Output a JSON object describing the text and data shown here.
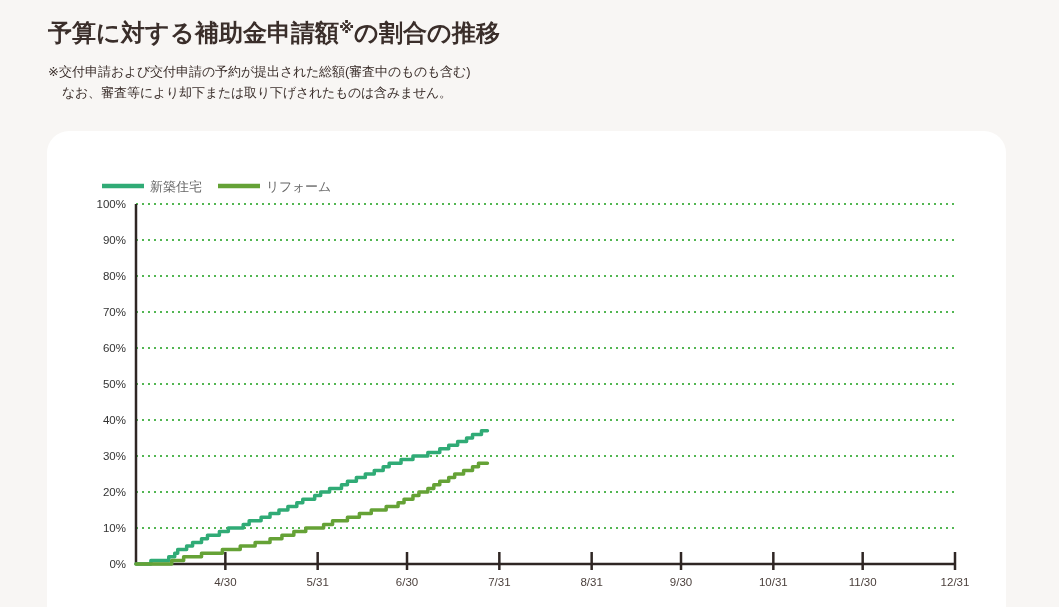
{
  "chart_data": {
    "type": "step",
    "title": "予算に対する補助金申請額$^{※}$の割合の推移",
    "subtitle": "※交付申請および交付申請の予約が提出された総額(審査中のものも含む)",
    "annotations": [
      "なお、審査等により却下または取り下げされたものは含みません。"
    ],
    "xlim": [
      "--03-31",
      "--12-31"
    ],
    "xticks": [
      {
        "value": "--04-30",
        "label": "4/30"
      },
      {
        "value": "--05-31",
        "label": "5/31"
      },
      {
        "value": "--06-30",
        "label": "6/30"
      },
      {
        "value": "--07-31",
        "label": "7/31"
      },
      {
        "value": "--08-31",
        "label": "8/31"
      },
      {
        "value": "--09-30",
        "label": "9/30"
      },
      {
        "value": "--10-31",
        "label": "10/31"
      },
      {
        "value": "--11-30",
        "label": "11/30"
      },
      {
        "value": "--12-31",
        "label": "12/31"
      }
    ],
    "ylim": [
      0,
      100
    ],
    "yticks": [
      {
        "value": 0,
        "label": "0%"
      },
      {
        "value": 10,
        "label": "10%"
      },
      {
        "value": 20,
        "label": "20%"
      },
      {
        "value": 30,
        "label": "30%"
      },
      {
        "value": 40,
        "label": "40%"
      },
      {
        "value": 50,
        "label": "50%"
      },
      {
        "value": 60,
        "label": "60%"
      },
      {
        "value": 70,
        "label": "70%"
      },
      {
        "value": 80,
        "label": "80%"
      },
      {
        "value": 90,
        "label": "90%"
      },
      {
        "value": 100,
        "label": "100%"
      }
    ],
    "grid": "y",
    "legend": "top left",
    "series": [
      {
        "name": "新築住宅",
        "color": "#30ab76",
        "x": [
          "--03-31",
          "--04-05",
          "--04-11",
          "--04-13",
          "--04-14",
          "--04-17",
          "--04-19",
          "--04-22",
          "--04-24",
          "--04-28",
          "--05-01",
          "--05-06",
          "--05-08",
          "--05-12",
          "--05-15",
          "--05-18",
          "--05-21",
          "--05-24",
          "--05-26",
          "--05-30",
          "--06-01",
          "--06-04",
          "--06-08",
          "--06-10",
          "--06-13",
          "--06-16",
          "--06-19",
          "--06-22",
          "--06-24",
          "--06-28",
          "--07-02",
          "--07-07",
          "--07-11",
          "--07-14",
          "--07-17",
          "--07-20",
          "--07-22",
          "--07-25",
          "--07-27"
        ],
        "values": [
          0,
          1,
          2,
          3,
          4,
          5,
          6,
          7,
          8,
          9,
          10,
          11,
          12,
          13,
          14,
          15,
          16,
          17,
          18,
          19,
          20,
          21,
          22,
          23,
          24,
          25,
          26,
          27,
          28,
          29,
          30,
          31,
          32,
          33,
          34,
          35,
          36,
          37,
          37
        ]
      },
      {
        "name": "リフォーム",
        "color": "#65a236",
        "x": [
          "--03-31",
          "--04-12",
          "--04-16",
          "--04-22",
          "--04-29",
          "--05-05",
          "--05-10",
          "--05-15",
          "--05-19",
          "--05-23",
          "--05-27",
          "--06-02",
          "--06-05",
          "--06-10",
          "--06-14",
          "--06-18",
          "--06-23",
          "--06-27",
          "--06-29",
          "--07-02",
          "--07-04",
          "--07-07",
          "--07-09",
          "--07-11",
          "--07-14",
          "--07-16",
          "--07-19",
          "--07-22",
          "--07-24",
          "--07-27"
        ],
        "values": [
          0,
          1,
          2,
          3,
          4,
          5,
          6,
          7,
          8,
          9,
          10,
          11,
          12,
          13,
          14,
          15,
          16,
          17,
          18,
          19,
          20,
          21,
          22,
          23,
          24,
          25,
          26,
          27,
          28,
          28
        ]
      }
    ]
  }
}
